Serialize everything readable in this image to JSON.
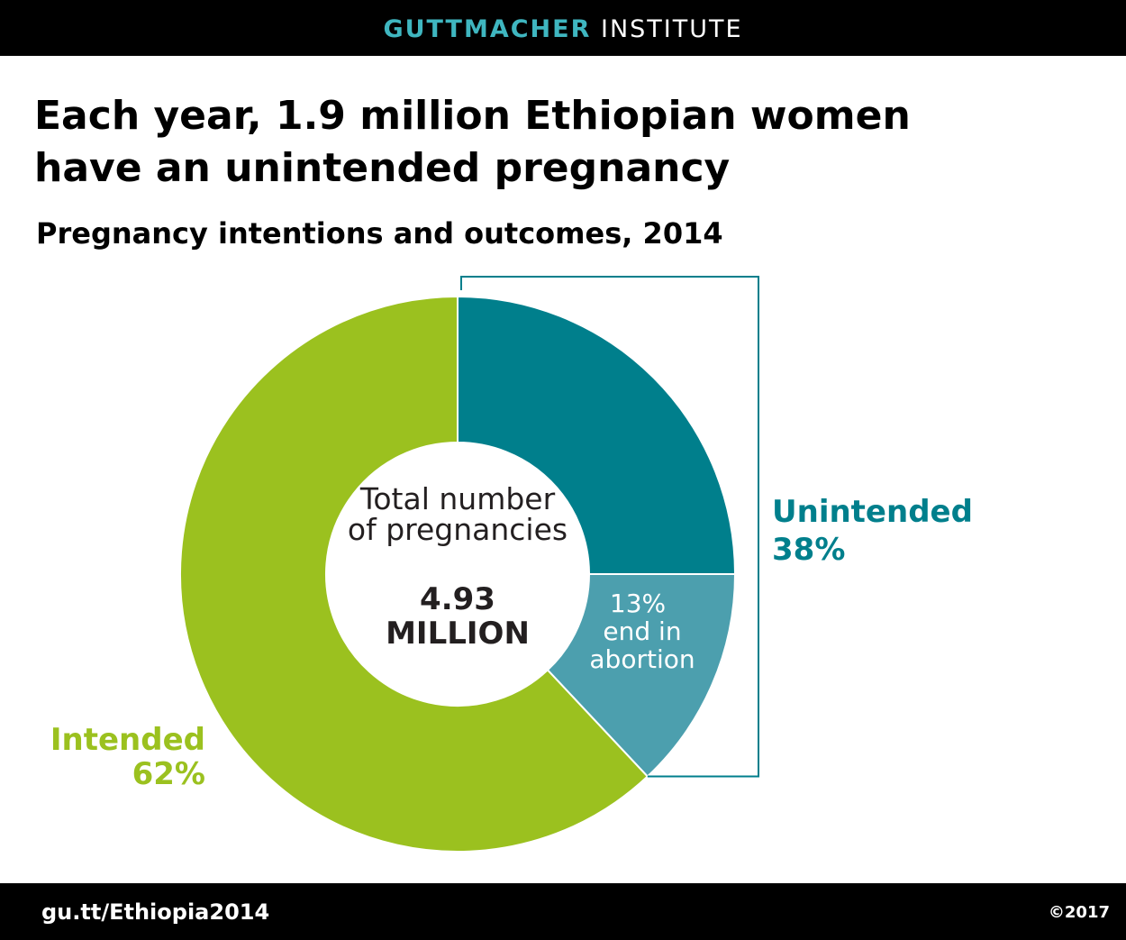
{
  "header": {
    "brand": "GUTTMACHER",
    "brand_rest": "INSTITUTE"
  },
  "chart_data": {
    "type": "donut",
    "title": "Each year, 1.9 million Ethiopian women have an unintended pregnancy",
    "subtitle": "Pregnancy intentions and outcomes, 2014",
    "categories": [
      null,
      "end in abortion",
      "Intended"
    ],
    "values": [
      25,
      13,
      62
    ],
    "value_labels": [
      null,
      "13%",
      "62%"
    ],
    "colors": [
      "#007f8c",
      "#4c9fae",
      "#9bc11f"
    ],
    "groups": [
      {
        "name": "Unintended",
        "value": 38,
        "value_label": "38%",
        "color": "#007f8c"
      }
    ],
    "center_label": "Total number of pregnancies",
    "total": {
      "value": 4.93,
      "label": "4.93 MILLION"
    }
  },
  "footer": {
    "link": "gu.tt/Ethiopia2014",
    "copyright": "©2017"
  }
}
